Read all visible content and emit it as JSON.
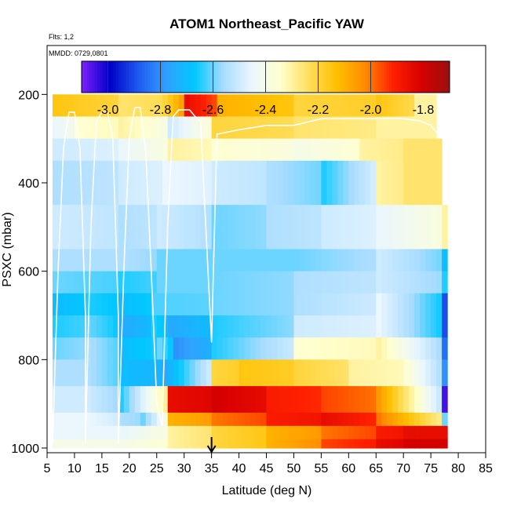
{
  "chart_data": {
    "type": "heatmap",
    "title": "ATOM1 Northeast_Pacific YAW",
    "flights_label": "Flts: 1,2",
    "dates_label": "MMDD: 0729,0801",
    "xlabel": "Latitude (deg N)",
    "ylabel": "PSXC (mbar)",
    "xlim": [
      5,
      85
    ],
    "ylim": [
      1000,
      100
    ],
    "x_ticks": [
      5,
      10,
      15,
      20,
      25,
      30,
      35,
      40,
      45,
      50,
      55,
      60,
      65,
      70,
      75,
      80,
      85
    ],
    "y_ticks": [
      200,
      400,
      600,
      800,
      1000
    ],
    "colorbar": {
      "range": [
        -3.1,
        -1.7
      ],
      "ticks": [
        -3.0,
        -2.8,
        -2.6,
        -2.4,
        -2.2,
        -2.0,
        -1.8
      ],
      "tick_labels": [
        "-3.0",
        "-2.8",
        "-2.6",
        "-2.4",
        "-2.2",
        "-2.0",
        "-1.8"
      ],
      "colors": [
        "#7f1fff",
        "#0000c8",
        "#1e5af0",
        "#32a0ff",
        "#00c8ff",
        "#a8dcff",
        "#eaf6ff",
        "#ffffd0",
        "#ffe060",
        "#ffc000",
        "#ff8c00",
        "#ff2000",
        "#d80000",
        "#9b1010"
      ]
    },
    "marker_latitude": 35,
    "grid": false,
    "bands": [
      {
        "p": [
          200,
          250
        ],
        "cells": [
          [
            6,
            18,
            -2.15
          ],
          [
            18,
            26,
            -2.25
          ],
          [
            26,
            30,
            -2.2
          ],
          [
            30,
            36,
            -1.85
          ],
          [
            36,
            50,
            -2.1
          ],
          [
            50,
            65,
            -2.2
          ],
          [
            65,
            72,
            -2.15
          ],
          [
            72,
            76,
            -2.3
          ]
        ]
      },
      {
        "p": [
          250,
          300
        ],
        "cells": [
          [
            6,
            10,
            -2.45
          ],
          [
            10,
            18,
            -2.35
          ],
          [
            18,
            27,
            -2.3
          ],
          [
            27,
            35,
            -2.5
          ],
          [
            35,
            50,
            -2.2
          ],
          [
            50,
            65,
            -2.25
          ],
          [
            65,
            76,
            -2.3
          ]
        ]
      },
      {
        "p": [
          300,
          350
        ],
        "cells": [
          [
            6,
            18,
            -2.5
          ],
          [
            18,
            27,
            -2.45
          ],
          [
            27,
            35,
            -2.3
          ],
          [
            35,
            50,
            -2.35
          ],
          [
            50,
            62,
            -2.4
          ],
          [
            62,
            70,
            -2.3
          ],
          [
            70,
            77,
            -2.25
          ]
        ]
      },
      {
        "p": [
          350,
          450
        ],
        "cells": [
          [
            6,
            18,
            -2.55
          ],
          [
            18,
            26,
            -2.5
          ],
          [
            26,
            35,
            -2.45
          ],
          [
            35,
            45,
            -2.5
          ],
          [
            45,
            55,
            -2.55
          ],
          [
            55,
            65,
            -2.65
          ],
          [
            65,
            70,
            -2.3
          ],
          [
            70,
            77,
            -2.25
          ]
        ]
      },
      {
        "p": [
          450,
          550
        ],
        "cells": [
          [
            6,
            18,
            -2.5
          ],
          [
            18,
            25,
            -2.55
          ],
          [
            25,
            35,
            -2.5
          ],
          [
            35,
            45,
            -2.6
          ],
          [
            45,
            55,
            -2.55
          ],
          [
            55,
            65,
            -2.5
          ],
          [
            65,
            77,
            -2.45
          ],
          [
            77,
            78,
            -2.3
          ]
        ]
      },
      {
        "p": [
          550,
          600
        ],
        "cells": [
          [
            6,
            18,
            -2.55
          ],
          [
            18,
            25,
            -2.55
          ],
          [
            25,
            35,
            -2.6
          ],
          [
            35,
            50,
            -2.6
          ],
          [
            50,
            65,
            -2.6
          ],
          [
            65,
            77,
            -2.5
          ],
          [
            77,
            78,
            -2.7
          ]
        ]
      },
      {
        "p": [
          600,
          650
        ],
        "cells": [
          [
            6,
            18,
            -2.6
          ],
          [
            18,
            25,
            -2.65
          ],
          [
            25,
            35,
            -2.6
          ],
          [
            35,
            50,
            -2.6
          ],
          [
            50,
            65,
            -2.55
          ],
          [
            65,
            77,
            -2.5
          ],
          [
            77,
            78,
            -2.65
          ]
        ]
      },
      {
        "p": [
          650,
          700
        ],
        "cells": [
          [
            6,
            12,
            -2.7
          ],
          [
            12,
            18,
            -2.65
          ],
          [
            18,
            24,
            -2.7
          ],
          [
            24,
            35,
            -2.62
          ],
          [
            35,
            50,
            -2.6
          ],
          [
            50,
            65,
            -2.55
          ],
          [
            65,
            77,
            -2.45
          ],
          [
            77,
            78,
            -2.9
          ]
        ]
      },
      {
        "p": [
          700,
          750
        ],
        "cells": [
          [
            6,
            12,
            -2.65
          ],
          [
            12,
            18,
            -2.6
          ],
          [
            18,
            24,
            -2.75
          ],
          [
            24,
            27,
            -2.65
          ],
          [
            27,
            35,
            -2.75
          ],
          [
            35,
            50,
            -2.65
          ],
          [
            50,
            65,
            -2.5
          ],
          [
            65,
            77,
            -2.45
          ],
          [
            77,
            78,
            -2.9
          ]
        ]
      },
      {
        "p": [
          750,
          800
        ],
        "cells": [
          [
            6,
            12,
            -2.6
          ],
          [
            12,
            18,
            -2.55
          ],
          [
            18,
            25,
            -2.7
          ],
          [
            25,
            28,
            -2.6
          ],
          [
            28,
            35,
            -2.8
          ],
          [
            35,
            50,
            -2.65
          ],
          [
            50,
            65,
            -2.35
          ],
          [
            65,
            77,
            -2.3
          ],
          [
            77,
            78,
            -2.85
          ]
        ]
      },
      {
        "p": [
          800,
          860
        ],
        "cells": [
          [
            6,
            12,
            -2.55
          ],
          [
            12,
            18,
            -2.55
          ],
          [
            18,
            26,
            -2.7
          ],
          [
            26,
            35,
            -2.75
          ],
          [
            35,
            40,
            -2.2
          ],
          [
            40,
            50,
            -2.15
          ],
          [
            50,
            60,
            -2.2
          ],
          [
            60,
            70,
            -2.3
          ],
          [
            70,
            77,
            -2.35
          ],
          [
            77,
            78,
            -2.8
          ]
        ]
      },
      {
        "p": [
          860,
          920
        ],
        "cells": [
          [
            6,
            12,
            -2.5
          ],
          [
            12,
            18,
            -2.5
          ],
          [
            18,
            27,
            -2.65
          ],
          [
            27,
            35,
            -1.85
          ],
          [
            35,
            45,
            -1.8
          ],
          [
            45,
            55,
            -1.9
          ],
          [
            55,
            65,
            -1.95
          ],
          [
            65,
            77,
            -2.05
          ],
          [
            77,
            78,
            -3.05
          ]
        ]
      },
      {
        "p": [
          920,
          950
        ],
        "cells": [
          [
            6,
            12,
            -2.45
          ],
          [
            12,
            18,
            -2.45
          ],
          [
            18,
            22,
            -2.55
          ],
          [
            22,
            27,
            -2.6
          ],
          [
            27,
            35,
            -2.1
          ],
          [
            35,
            45,
            -2.0
          ],
          [
            45,
            55,
            -1.9
          ],
          [
            55,
            65,
            -1.85
          ],
          [
            65,
            77,
            -2.0
          ],
          [
            77,
            78,
            -2.6
          ]
        ]
      },
      {
        "p": [
          950,
          980
        ],
        "cells": [
          [
            6,
            12,
            -2.45
          ],
          [
            12,
            18,
            -2.45
          ],
          [
            18,
            27,
            -2.45
          ],
          [
            27,
            35,
            -2.3
          ],
          [
            35,
            45,
            -2.2
          ],
          [
            45,
            55,
            -2.1
          ],
          [
            55,
            65,
            -2.0
          ],
          [
            65,
            70,
            -1.9
          ],
          [
            70,
            78,
            -1.85
          ]
        ]
      },
      {
        "p": [
          980,
          1000
        ],
        "cells": [
          [
            6,
            12,
            -2.4
          ],
          [
            12,
            18,
            -2.4
          ],
          [
            18,
            27,
            -2.4
          ],
          [
            27,
            35,
            -2.3
          ],
          [
            35,
            45,
            -2.2
          ],
          [
            45,
            55,
            -2.1
          ],
          [
            55,
            65,
            -1.95
          ],
          [
            65,
            70,
            -1.85
          ],
          [
            70,
            78,
            -1.8
          ]
        ]
      }
    ],
    "flight_tracks": [
      [
        [
          6,
          990
        ],
        [
          7,
          600
        ],
        [
          8,
          320
        ],
        [
          9,
          240
        ],
        [
          10,
          240
        ],
        [
          11,
          320
        ],
        [
          12,
          700
        ],
        [
          12,
          990
        ]
      ],
      [
        [
          12,
          990
        ],
        [
          13,
          500
        ],
        [
          14,
          260
        ],
        [
          15,
          240
        ],
        [
          16,
          240
        ],
        [
          17,
          300
        ],
        [
          18,
          700
        ],
        [
          18,
          990
        ]
      ],
      [
        [
          18,
          990
        ],
        [
          19,
          600
        ],
        [
          20,
          300
        ],
        [
          21,
          230
        ],
        [
          22,
          230
        ],
        [
          23,
          330
        ],
        [
          24,
          600
        ],
        [
          25,
          900
        ],
        [
          26,
          950
        ]
      ],
      [
        [
          26,
          950
        ],
        [
          27,
          500
        ],
        [
          28,
          250
        ],
        [
          29,
          235
        ],
        [
          30,
          235
        ],
        [
          31,
          235
        ],
        [
          32,
          250
        ],
        [
          33,
          260
        ],
        [
          35,
          760
        ],
        [
          36,
          290
        ],
        [
          40,
          280
        ],
        [
          45,
          270
        ],
        [
          50,
          270
        ],
        [
          55,
          255
        ],
        [
          60,
          255
        ],
        [
          65,
          255
        ],
        [
          70,
          255
        ],
        [
          73,
          260
        ],
        [
          75,
          270
        ],
        [
          77,
          300
        ]
      ]
    ]
  }
}
